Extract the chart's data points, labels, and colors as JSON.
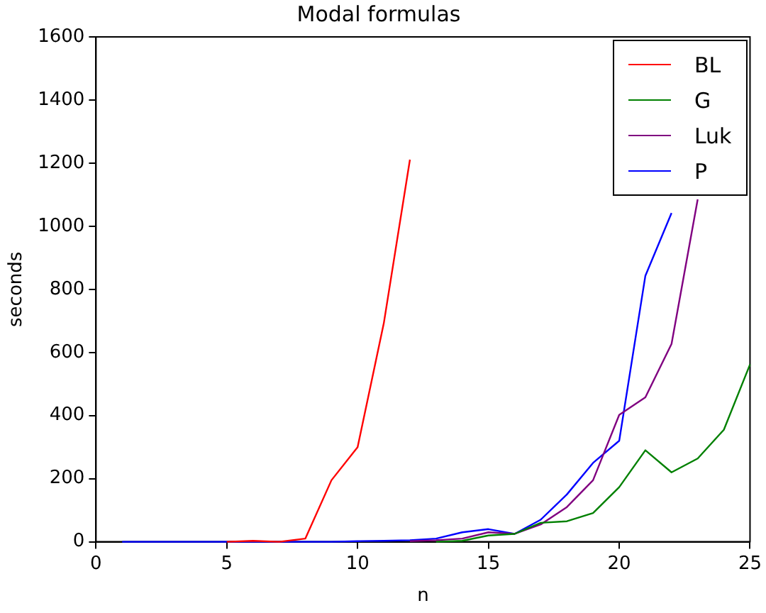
{
  "chart_data": {
    "type": "line",
    "title": "Modal formulas",
    "xlabel": "n",
    "ylabel": "seconds",
    "x": [
      1,
      2,
      3,
      4,
      5,
      6,
      7,
      8,
      9,
      10,
      11,
      12,
      13,
      14,
      15,
      16,
      17,
      18,
      19,
      20,
      21,
      22,
      23,
      24,
      25
    ],
    "series": [
      {
        "name": "BL",
        "color": "#ff0000",
        "values": [
          null,
          null,
          null,
          null,
          0,
          3,
          0,
          10,
          195,
          300,
          692,
          1211,
          null,
          null,
          null,
          null,
          null,
          null,
          null,
          null,
          null,
          null,
          null,
          null,
          null
        ]
      },
      {
        "name": "G",
        "color": "#008000",
        "values": [
          null,
          null,
          null,
          null,
          null,
          null,
          null,
          null,
          null,
          null,
          null,
          null,
          0,
          3,
          20,
          25,
          60,
          65,
          91,
          173,
          290,
          220,
          264,
          355,
          562
        ]
      },
      {
        "name": "Luk",
        "color": "#800080",
        "values": [
          null,
          null,
          null,
          null,
          null,
          null,
          null,
          null,
          null,
          null,
          null,
          2,
          5,
          10,
          30,
          25,
          55,
          110,
          195,
          402,
          458,
          627,
          1085,
          null,
          null
        ]
      },
      {
        "name": "P",
        "color": "#0000ff",
        "values": [
          0,
          0,
          0,
          0,
          0,
          0,
          0,
          0,
          0,
          2,
          3,
          5,
          10,
          30,
          40,
          25,
          70,
          150,
          250,
          320,
          843,
          1042,
          null,
          null,
          null
        ]
      }
    ],
    "xlim": [
      0,
      25
    ],
    "xticks": [
      0,
      5,
      10,
      15,
      20,
      25
    ],
    "ylim": [
      0,
      1600
    ],
    "yticks": [
      0,
      200,
      400,
      600,
      800,
      1000,
      1200,
      1400,
      1600
    ],
    "grid": false,
    "legend": "top right",
    "marker": "none",
    "line_style": "solid"
  }
}
